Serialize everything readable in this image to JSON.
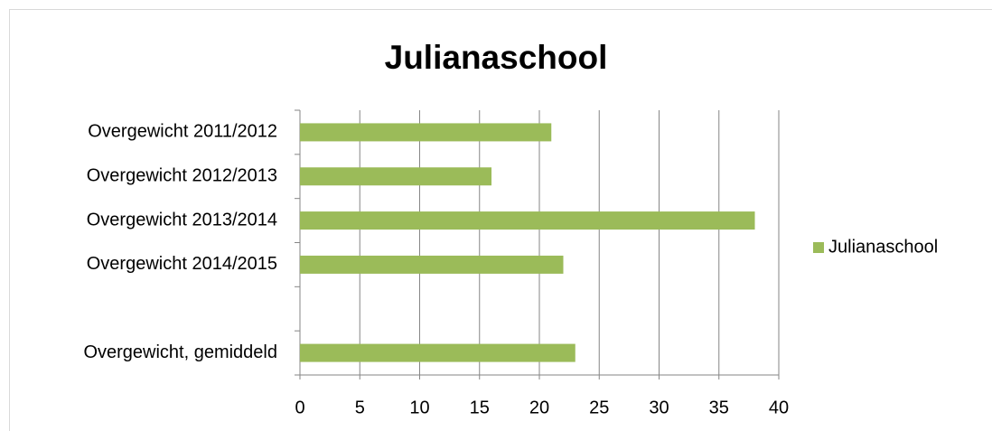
{
  "chart_data": {
    "type": "hbar",
    "title": "Julianaschool",
    "categories": [
      "Overgewicht 2011/2012",
      "Overgewicht 2012/2013",
      "Overgewicht 2013/2014",
      "Overgewicht 2014/2015",
      null,
      "Overgewicht, gemiddeld"
    ],
    "series": [
      {
        "name": "Julianaschool",
        "color": "#9bbb59",
        "values": [
          21,
          16,
          38,
          22,
          null,
          23
        ]
      }
    ],
    "xlim": [
      0,
      40
    ],
    "xticks": [
      0,
      5,
      10,
      15,
      20,
      25,
      30,
      35,
      40
    ],
    "grid": true,
    "legend": "right"
  }
}
